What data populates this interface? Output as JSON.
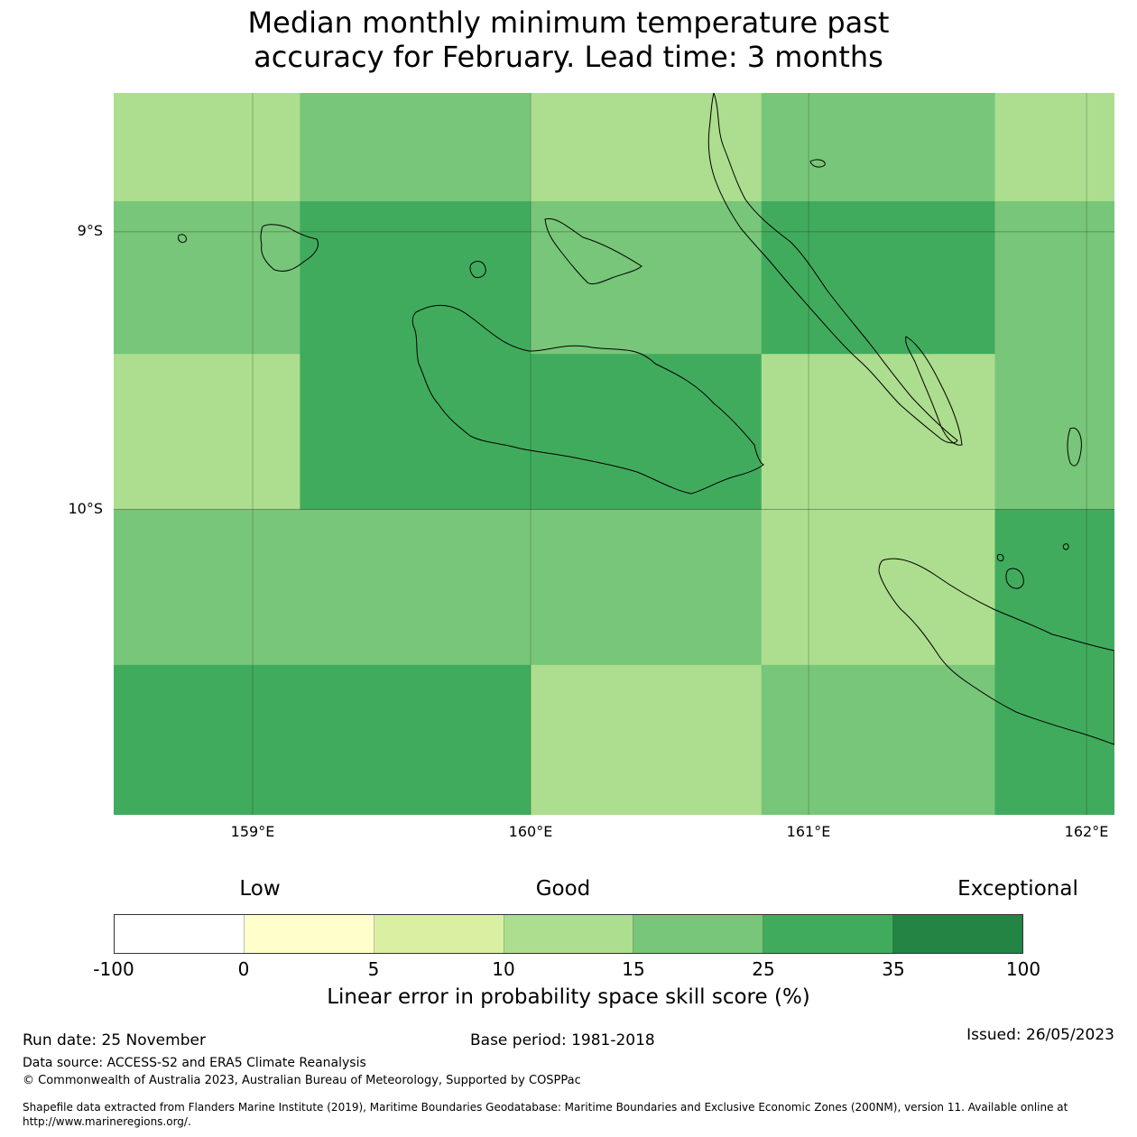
{
  "title_line1": "Median monthly minimum temperature past",
  "title_line2": "accuracy for February. Lead time: 3 months",
  "map": {
    "lon_range": [
      158.5,
      162.1
    ],
    "lat_range": [
      -8.5,
      -11.1
    ],
    "lat_labels": [
      "9°S",
      "10°S"
    ],
    "lon_labels": [
      "159°E",
      "160°E",
      "161°E",
      "162°E"
    ],
    "grid": {
      "lon_edges": [
        158.5,
        159.17,
        160.0,
        160.83,
        161.67,
        162.1
      ],
      "lat_edges": [
        -8.5,
        -8.89,
        -9.44,
        -10.0,
        -10.56,
        -11.1
      ],
      "cell_classes": [
        [
          3,
          4,
          3,
          4,
          3
        ],
        [
          4,
          5,
          4,
          5,
          4
        ],
        [
          3,
          5,
          5,
          3,
          4
        ],
        [
          4,
          4,
          4,
          3,
          5
        ],
        [
          5,
          5,
          3,
          4,
          5
        ]
      ]
    }
  },
  "legend": {
    "category_low": "Low",
    "category_good": "Good",
    "category_exceptional": "Exceptional",
    "ticks": [
      "-100",
      "0",
      "5",
      "10",
      "15",
      "25",
      "35",
      "100"
    ],
    "colors": [
      "#ffffff",
      "#ffffcc",
      "#d9f0a3",
      "#addd8e",
      "#78c679",
      "#41ab5d",
      "#238443"
    ],
    "label": "Linear error in probability space skill score (%)"
  },
  "footer": {
    "run_date": "Run date: 25 November",
    "base_period": "Base period: 1981-2018",
    "issued": "Issued: 26/05/2023",
    "data_source": "Data source: ACCESS-S2 and ERA5 Climate Reanalysis",
    "copyright": "© Commonwealth of Australia 2023, Australian Bureau of Meteorology, Supported by COSPPac",
    "shapefile_line1": "Shapefile data extracted from Flanders Marine Institute (2019), Maritime Boundaries Geodatabase: Maritime Boundaries and Exclusive Economic Zones (200NM), version 11. Available online at",
    "shapefile_line2": "http://www.marineregions.org/."
  }
}
